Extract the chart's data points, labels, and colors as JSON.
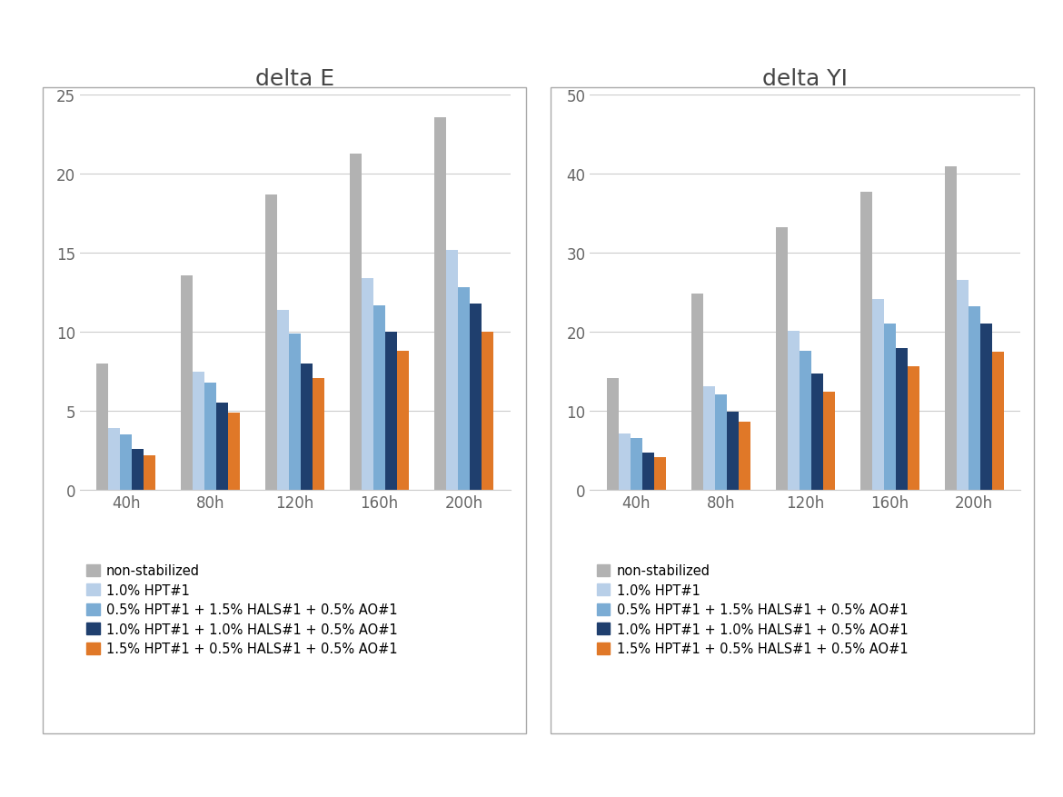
{
  "categories": [
    "40h",
    "80h",
    "120h",
    "160h",
    "200h"
  ],
  "series_labels": [
    "non-stabilized",
    "1.0% HPT#1",
    "0.5% HPT#1 + 1.5% HALS#1 + 0.5% AO#1",
    "1.0% HPT#1 + 1.0% HALS#1 + 0.5% AO#1",
    "1.5% HPT#1 + 0.5% HALS#1 + 0.5% AO#1"
  ],
  "colors": [
    "#b2b2b2",
    "#b8cfe8",
    "#7bacd4",
    "#1f3f6e",
    "#e07828"
  ],
  "delta_E": [
    [
      8.0,
      13.6,
      18.7,
      21.3,
      23.6
    ],
    [
      3.9,
      7.5,
      11.4,
      13.4,
      15.2
    ],
    [
      3.5,
      6.8,
      9.9,
      11.7,
      12.8
    ],
    [
      2.6,
      5.5,
      8.0,
      10.0,
      11.8
    ],
    [
      2.2,
      4.9,
      7.1,
      8.8,
      10.0
    ]
  ],
  "delta_YI": [
    [
      14.2,
      24.8,
      33.2,
      37.7,
      41.0
    ],
    [
      7.1,
      13.1,
      20.1,
      24.2,
      26.6
    ],
    [
      6.5,
      12.1,
      17.6,
      21.0,
      23.2
    ],
    [
      4.7,
      9.9,
      14.7,
      18.0,
      21.0
    ],
    [
      4.1,
      8.6,
      12.4,
      15.6,
      17.5
    ]
  ],
  "deltaE_title": "delta E",
  "deltaYI_title": "delta YI",
  "deltaE_ylim": [
    0,
    25
  ],
  "deltaYI_ylim": [
    0,
    50
  ],
  "deltaE_yticks": [
    0,
    5,
    10,
    15,
    20,
    25
  ],
  "deltaYI_yticks": [
    0,
    10,
    20,
    30,
    40,
    50
  ],
  "background_color": "#ffffff",
  "plot_bg_color": "#ffffff",
  "grid_color": "#cccccc",
  "box_edge_color": "#aaaaaa",
  "tick_label_color": "#666666",
  "title_color": "#444444"
}
